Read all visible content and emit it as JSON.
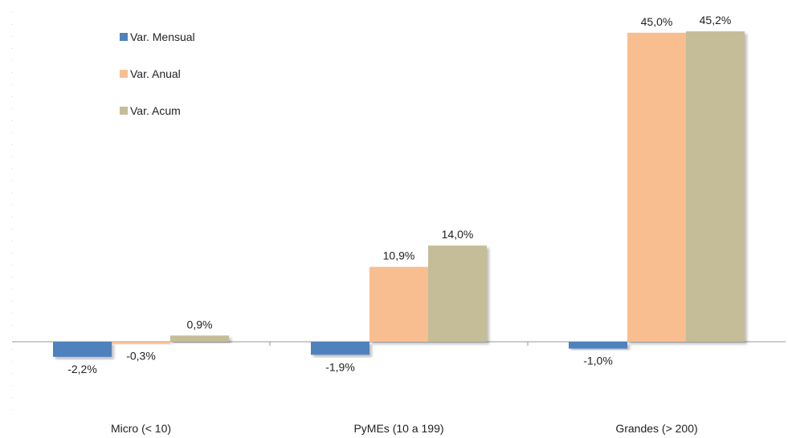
{
  "chart_data": {
    "type": "bar",
    "categories": [
      "Micro (< 10)",
      "PyMEs (10 a 199)",
      "Grandes (> 200)"
    ],
    "series": [
      {
        "name": "Var. Mensual",
        "values": [
          -2.2,
          -1.9,
          -1.0
        ],
        "labels": [
          "-2,2%",
          "-1,9%",
          "-1,0%"
        ],
        "color": "#4f81bd"
      },
      {
        "name": "Var. Anual",
        "values": [
          -0.3,
          10.9,
          45.0
        ],
        "labels": [
          "-0,3%",
          "10,9%",
          "45,0%"
        ],
        "color": "#f9be8f"
      },
      {
        "name": "Var. Acum",
        "values": [
          0.9,
          14.0,
          45.2
        ],
        "labels": [
          "0,9%",
          "14,0%",
          "45,2%"
        ],
        "color": "#c4bd97"
      }
    ],
    "title": "",
    "xlabel": "",
    "ylabel": "",
    "ylim": [
      -5,
      50
    ],
    "grid": false,
    "legend_position": "top-left"
  }
}
